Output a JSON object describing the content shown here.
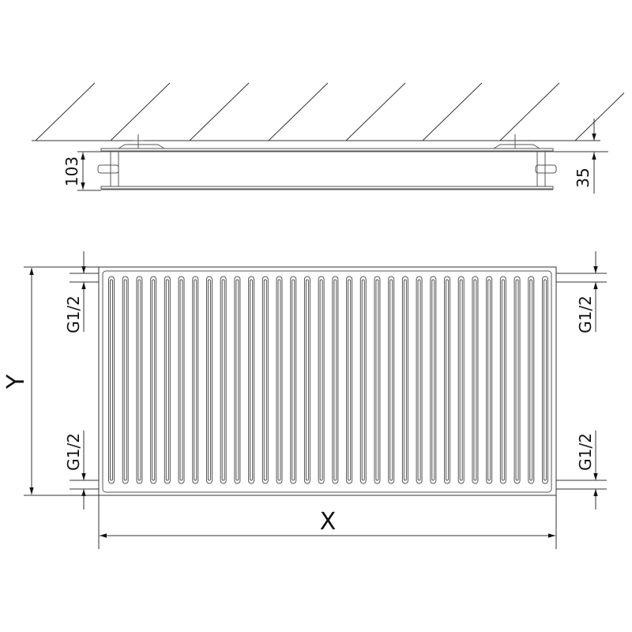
{
  "side_view": {
    "depth_label": "103",
    "wall_gap_label": "35"
  },
  "front_view": {
    "height_label": "Y",
    "width_label": "X",
    "connection_labels": [
      "G1/2",
      "G1/2",
      "G1/2",
      "G1/2"
    ]
  },
  "colors": {
    "line": "#222222",
    "panel_line": "#555555",
    "background": "#ffffff"
  }
}
